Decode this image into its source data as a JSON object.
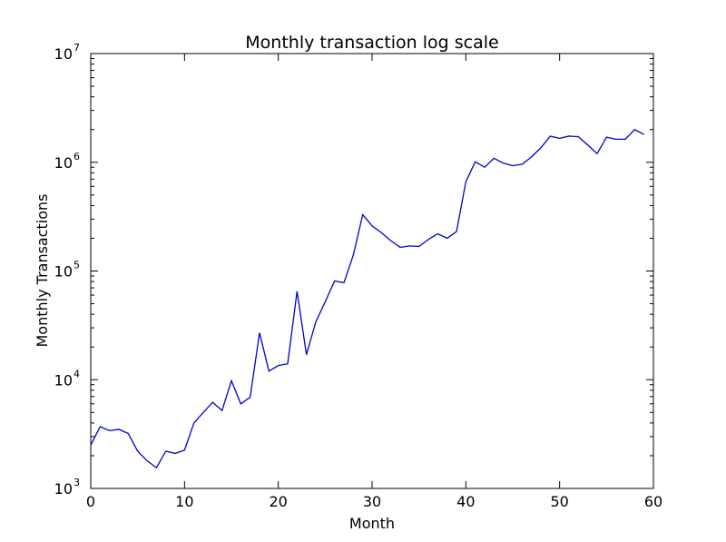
{
  "chart_data": {
    "type": "line",
    "title": "Monthly transaction log scale",
    "xlabel": "Month",
    "ylabel": "Monthly Transactions",
    "xlim": [
      0,
      60
    ],
    "ylim": [
      1000,
      10000000
    ],
    "yscale": "log",
    "grid": false,
    "line_color": "#0000cc",
    "x_ticks": [
      0,
      10,
      20,
      30,
      40,
      50,
      60
    ],
    "y_ticks": [
      {
        "base": "10",
        "exp": "3",
        "value": 1000
      },
      {
        "base": "10",
        "exp": "4",
        "value": 10000
      },
      {
        "base": "10",
        "exp": "5",
        "value": 100000
      },
      {
        "base": "10",
        "exp": "6",
        "value": 1000000
      },
      {
        "base": "10",
        "exp": "7",
        "value": 10000000
      }
    ],
    "series": [
      {
        "x": [
          0,
          1,
          2,
          3,
          4,
          5,
          6,
          7,
          8,
          9,
          10,
          11,
          12,
          13,
          14,
          15,
          16,
          17,
          18,
          19,
          20,
          21,
          22,
          23,
          24,
          25,
          26,
          27,
          28,
          29,
          30,
          31,
          32,
          33,
          34,
          35,
          36,
          37,
          38,
          39,
          40,
          41,
          42,
          43,
          44,
          45,
          46,
          47,
          48,
          49,
          50,
          51,
          52,
          53,
          54,
          55,
          56,
          57,
          58,
          59
        ],
        "y": [
          2500,
          3700,
          3400,
          3500,
          3200,
          2200,
          1800,
          1550,
          2200,
          2100,
          2250,
          4000,
          5000,
          6200,
          5200,
          9800,
          6000,
          6900,
          27000,
          12000,
          13500,
          14000,
          65000,
          17000,
          34000,
          52000,
          81000,
          78000,
          140000,
          330000,
          260000,
          225000,
          190000,
          165000,
          170000,
          168000,
          195000,
          220000,
          200000,
          230000,
          660000,
          1010000,
          900000,
          1090000,
          980000,
          930000,
          960000,
          1120000,
          1360000,
          1740000,
          1660000,
          1740000,
          1720000,
          1440000,
          1200000,
          1700000,
          1630000,
          1630000,
          2000000,
          1800000
        ]
      }
    ]
  }
}
